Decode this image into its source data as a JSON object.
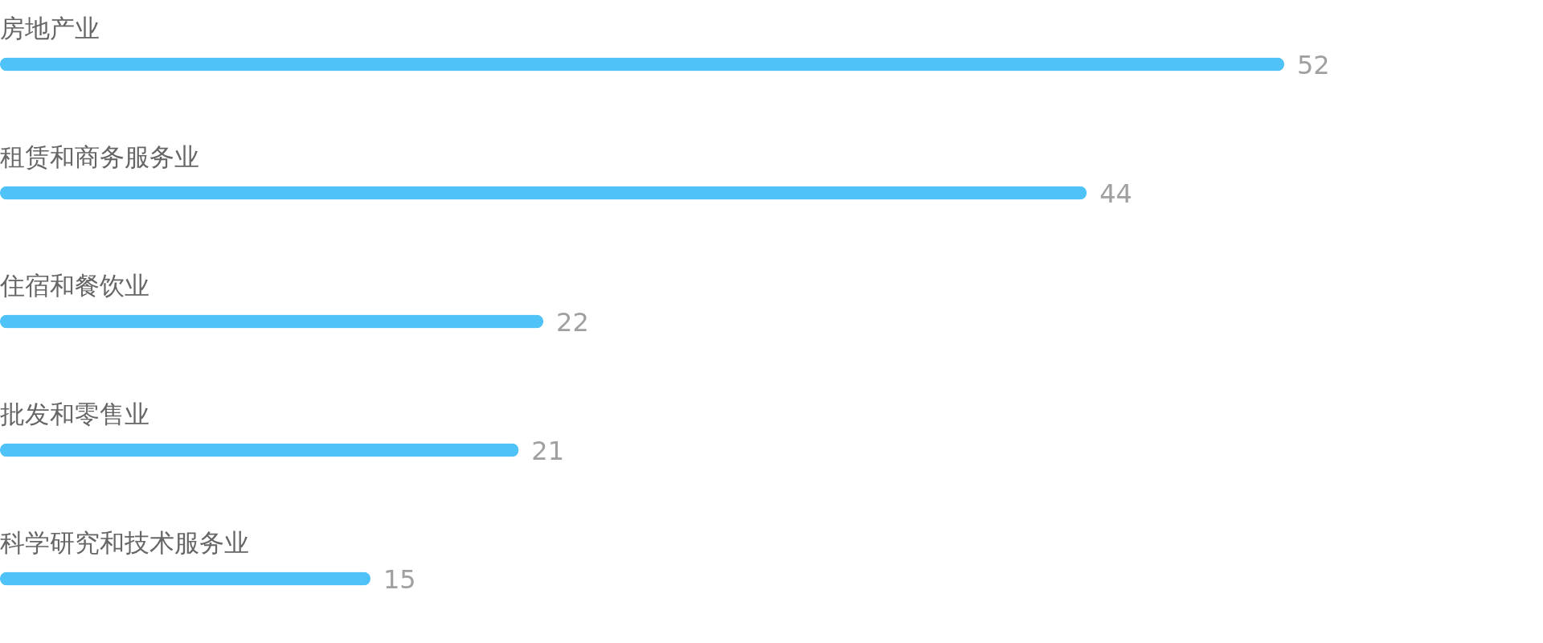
{
  "chart_data": {
    "type": "bar",
    "orientation": "horizontal",
    "categories": [
      "房地产业",
      "租赁和商务服务业",
      "住宿和餐饮业",
      "批发和零售业",
      "科学研究和技术服务业"
    ],
    "values": [
      52,
      44,
      22,
      21,
      15
    ],
    "color": "#4fc3f7",
    "data_labels": true
  }
}
